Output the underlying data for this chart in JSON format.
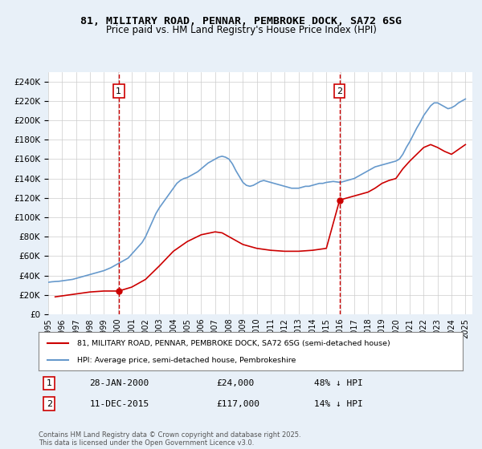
{
  "title_line1": "81, MILITARY ROAD, PENNAR, PEMBROKE DOCK, SA72 6SG",
  "title_line2": "Price paid vs. HM Land Registry's House Price Index (HPI)",
  "ylabel_ticks": [
    "£0",
    "£20K",
    "£40K",
    "£60K",
    "£80K",
    "£100K",
    "£120K",
    "£140K",
    "£160K",
    "£180K",
    "£200K",
    "£220K",
    "£240K"
  ],
  "ytick_values": [
    0,
    20000,
    40000,
    60000,
    80000,
    100000,
    120000,
    140000,
    160000,
    180000,
    200000,
    220000,
    240000
  ],
  "ylim": [
    0,
    250000
  ],
  "xlim_start": 1995.0,
  "xlim_end": 2025.5,
  "xtick_years": [
    1995,
    1996,
    1997,
    1998,
    1999,
    2000,
    2001,
    2002,
    2003,
    2004,
    2005,
    2006,
    2007,
    2008,
    2009,
    2010,
    2011,
    2012,
    2013,
    2014,
    2015,
    2016,
    2017,
    2018,
    2019,
    2020,
    2021,
    2022,
    2023,
    2024,
    2025
  ],
  "purchase_marker1_x": 2000.07,
  "purchase_marker1_y": 24000,
  "purchase_marker2_x": 2015.94,
  "purchase_marker2_y": 117000,
  "vline1_x": 2000.07,
  "vline2_x": 2015.94,
  "vline_color": "#cc0000",
  "vline_style": "--",
  "marker_color": "#cc0000",
  "hpi_color": "#6699cc",
  "price_paid_color": "#cc0000",
  "legend_label_price": "81, MILITARY ROAD, PENNAR, PEMBROKE DOCK, SA72 6SG (semi-detached house)",
  "legend_label_hpi": "HPI: Average price, semi-detached house, Pembrokeshire",
  "annotation1_label": "1",
  "annotation2_label": "2",
  "annot_date1": "28-JAN-2000",
  "annot_price1": "£24,000",
  "annot_pct1": "48% ↓ HPI",
  "annot_date2": "11-DEC-2015",
  "annot_price2": "£117,000",
  "annot_pct2": "14% ↓ HPI",
  "footer_text": "Contains HM Land Registry data © Crown copyright and database right 2025.\nThis data is licensed under the Open Government Licence v3.0.",
  "bg_color": "#e8f0f8",
  "plot_bg_color": "#ffffff",
  "grid_color": "#cccccc",
  "hpi_data": [
    [
      1995.0,
      33000
    ],
    [
      1995.25,
      33500
    ],
    [
      1995.5,
      33800
    ],
    [
      1995.75,
      34000
    ],
    [
      1996.0,
      34500
    ],
    [
      1996.25,
      35000
    ],
    [
      1996.5,
      35500
    ],
    [
      1996.75,
      36000
    ],
    [
      1997.0,
      37000
    ],
    [
      1997.25,
      38000
    ],
    [
      1997.5,
      39000
    ],
    [
      1997.75,
      40000
    ],
    [
      1998.0,
      41000
    ],
    [
      1998.25,
      42000
    ],
    [
      1998.5,
      43000
    ],
    [
      1998.75,
      44000
    ],
    [
      1999.0,
      45000
    ],
    [
      1999.25,
      46500
    ],
    [
      1999.5,
      48000
    ],
    [
      1999.75,
      50000
    ],
    [
      2000.0,
      52000
    ],
    [
      2000.25,
      54000
    ],
    [
      2000.5,
      56000
    ],
    [
      2000.75,
      58000
    ],
    [
      2001.0,
      62000
    ],
    [
      2001.25,
      66000
    ],
    [
      2001.5,
      70000
    ],
    [
      2001.75,
      74000
    ],
    [
      2002.0,
      80000
    ],
    [
      2002.25,
      88000
    ],
    [
      2002.5,
      96000
    ],
    [
      2002.75,
      104000
    ],
    [
      2003.0,
      110000
    ],
    [
      2003.25,
      115000
    ],
    [
      2003.5,
      120000
    ],
    [
      2003.75,
      125000
    ],
    [
      2004.0,
      130000
    ],
    [
      2004.25,
      135000
    ],
    [
      2004.5,
      138000
    ],
    [
      2004.75,
      140000
    ],
    [
      2005.0,
      141000
    ],
    [
      2005.25,
      143000
    ],
    [
      2005.5,
      145000
    ],
    [
      2005.75,
      147000
    ],
    [
      2006.0,
      150000
    ],
    [
      2006.25,
      153000
    ],
    [
      2006.5,
      156000
    ],
    [
      2006.75,
      158000
    ],
    [
      2007.0,
      160000
    ],
    [
      2007.25,
      162000
    ],
    [
      2007.5,
      163000
    ],
    [
      2007.75,
      162000
    ],
    [
      2008.0,
      160000
    ],
    [
      2008.25,
      155000
    ],
    [
      2008.5,
      148000
    ],
    [
      2008.75,
      142000
    ],
    [
      2009.0,
      136000
    ],
    [
      2009.25,
      133000
    ],
    [
      2009.5,
      132000
    ],
    [
      2009.75,
      133000
    ],
    [
      2010.0,
      135000
    ],
    [
      2010.25,
      137000
    ],
    [
      2010.5,
      138000
    ],
    [
      2010.75,
      137000
    ],
    [
      2011.0,
      136000
    ],
    [
      2011.25,
      135000
    ],
    [
      2011.5,
      134000
    ],
    [
      2011.75,
      133000
    ],
    [
      2012.0,
      132000
    ],
    [
      2012.25,
      131000
    ],
    [
      2012.5,
      130000
    ],
    [
      2012.75,
      130000
    ],
    [
      2013.0,
      130000
    ],
    [
      2013.25,
      131000
    ],
    [
      2013.5,
      132000
    ],
    [
      2013.75,
      132000
    ],
    [
      2014.0,
      133000
    ],
    [
      2014.25,
      134000
    ],
    [
      2014.5,
      135000
    ],
    [
      2014.75,
      135000
    ],
    [
      2015.0,
      136000
    ],
    [
      2015.25,
      136500
    ],
    [
      2015.5,
      137000
    ],
    [
      2015.75,
      136500
    ],
    [
      2016.0,
      136000
    ],
    [
      2016.25,
      137000
    ],
    [
      2016.5,
      138000
    ],
    [
      2016.75,
      139000
    ],
    [
      2017.0,
      140000
    ],
    [
      2017.25,
      142000
    ],
    [
      2017.5,
      144000
    ],
    [
      2017.75,
      146000
    ],
    [
      2018.0,
      148000
    ],
    [
      2018.25,
      150000
    ],
    [
      2018.5,
      152000
    ],
    [
      2018.75,
      153000
    ],
    [
      2019.0,
      154000
    ],
    [
      2019.25,
      155000
    ],
    [
      2019.5,
      156000
    ],
    [
      2019.75,
      157000
    ],
    [
      2020.0,
      158000
    ],
    [
      2020.25,
      160000
    ],
    [
      2020.5,
      165000
    ],
    [
      2020.75,
      172000
    ],
    [
      2021.0,
      178000
    ],
    [
      2021.25,
      185000
    ],
    [
      2021.5,
      192000
    ],
    [
      2021.75,
      198000
    ],
    [
      2022.0,
      205000
    ],
    [
      2022.25,
      210000
    ],
    [
      2022.5,
      215000
    ],
    [
      2022.75,
      218000
    ],
    [
      2023.0,
      218000
    ],
    [
      2023.25,
      216000
    ],
    [
      2023.5,
      214000
    ],
    [
      2023.75,
      212000
    ],
    [
      2024.0,
      213000
    ],
    [
      2024.25,
      215000
    ],
    [
      2024.5,
      218000
    ],
    [
      2024.75,
      220000
    ],
    [
      2025.0,
      222000
    ]
  ],
  "price_paid_data": [
    [
      1995.5,
      18000
    ],
    [
      1996.0,
      19000
    ],
    [
      1996.5,
      20000
    ],
    [
      1997.0,
      21000
    ],
    [
      1997.5,
      22000
    ],
    [
      1998.0,
      23000
    ],
    [
      1998.5,
      23500
    ],
    [
      1999.0,
      24000
    ],
    [
      1999.5,
      24000
    ],
    [
      2000.07,
      24000
    ],
    [
      2000.07,
      24000
    ],
    [
      2001.0,
      28000
    ],
    [
      2002.0,
      36000
    ],
    [
      2003.0,
      50000
    ],
    [
      2004.0,
      65000
    ],
    [
      2005.0,
      75000
    ],
    [
      2006.0,
      82000
    ],
    [
      2007.0,
      85000
    ],
    [
      2007.5,
      84000
    ],
    [
      2008.0,
      80000
    ],
    [
      2009.0,
      72000
    ],
    [
      2010.0,
      68000
    ],
    [
      2011.0,
      66000
    ],
    [
      2012.0,
      65000
    ],
    [
      2013.0,
      65000
    ],
    [
      2014.0,
      66000
    ],
    [
      2015.0,
      68000
    ],
    [
      2015.94,
      117000
    ],
    [
      2016.0,
      118000
    ],
    [
      2016.5,
      120000
    ],
    [
      2017.0,
      122000
    ],
    [
      2017.5,
      124000
    ],
    [
      2018.0,
      126000
    ],
    [
      2018.5,
      130000
    ],
    [
      2019.0,
      135000
    ],
    [
      2019.5,
      138000
    ],
    [
      2020.0,
      140000
    ],
    [
      2020.5,
      150000
    ],
    [
      2021.0,
      158000
    ],
    [
      2021.5,
      165000
    ],
    [
      2022.0,
      172000
    ],
    [
      2022.5,
      175000
    ],
    [
      2023.0,
      172000
    ],
    [
      2023.5,
      168000
    ],
    [
      2024.0,
      165000
    ],
    [
      2024.5,
      170000
    ],
    [
      2025.0,
      175000
    ]
  ]
}
